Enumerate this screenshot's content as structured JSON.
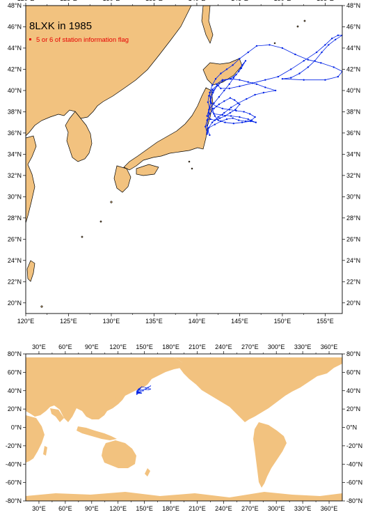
{
  "colors": {
    "land": "#f2c27f",
    "sea": "#ffffff",
    "track": "#0022e6",
    "legend_text": "#e60000",
    "legend_marker": "#e60000",
    "frame": "#000000"
  },
  "top_map": {
    "title": "8LXK in 1985",
    "legend_label": "5 or 6 of station information flag",
    "lon_range": [
      120,
      157
    ],
    "lat_range": [
      19,
      48
    ],
    "lon_ticks": [
      "120°E",
      "125°E",
      "130°E",
      "135°E",
      "140°E",
      "145°E",
      "150°E",
      "155°E"
    ],
    "lat_ticks": [
      "20°N",
      "22°N",
      "24°N",
      "26°N",
      "28°N",
      "30°N",
      "32°N",
      "34°N",
      "36°N",
      "38°N",
      "40°N",
      "42°N",
      "44°N",
      "46°N",
      "48°N"
    ],
    "track_lonlat": [
      [
        141.2,
        36.0
      ],
      [
        141.0,
        36.6
      ],
      [
        141.2,
        37.2
      ],
      [
        141.5,
        37.8
      ],
      [
        142.0,
        38.3
      ],
      [
        142.6,
        38.7
      ],
      [
        143.2,
        39.0
      ],
      [
        143.9,
        39.3
      ],
      [
        144.4,
        39.1
      ],
      [
        145.0,
        38.7
      ],
      [
        144.5,
        38.2
      ],
      [
        143.9,
        37.9
      ],
      [
        143.3,
        37.6
      ],
      [
        142.7,
        37.4
      ],
      [
        142.1,
        37.2
      ],
      [
        141.6,
        37.3
      ],
      [
        141.2,
        37.6
      ],
      [
        141.4,
        38.2
      ],
      [
        142.0,
        38.8
      ],
      [
        142.6,
        39.4
      ],
      [
        143.2,
        40.0
      ],
      [
        143.8,
        40.6
      ],
      [
        144.3,
        41.2
      ],
      [
        144.9,
        41.8
      ],
      [
        145.3,
        42.4
      ],
      [
        145.7,
        42.8
      ],
      [
        145.2,
        42.1
      ],
      [
        144.6,
        41.5
      ],
      [
        143.9,
        41.1
      ],
      [
        143.0,
        40.9
      ],
      [
        142.5,
        40.5
      ],
      [
        141.9,
        40.0
      ],
      [
        141.6,
        39.4
      ],
      [
        141.7,
        38.8
      ],
      [
        142.3,
        38.5
      ],
      [
        143.0,
        38.3
      ],
      [
        143.8,
        38.2
      ],
      [
        144.6,
        38.1
      ],
      [
        145.5,
        38.0
      ],
      [
        146.2,
        37.8
      ],
      [
        146.8,
        37.5
      ],
      [
        146.4,
        37.2
      ],
      [
        145.7,
        37.1
      ],
      [
        144.9,
        37.2
      ],
      [
        144.2,
        37.4
      ],
      [
        143.5,
        37.3
      ],
      [
        142.8,
        37.1
      ],
      [
        142.1,
        36.8
      ],
      [
        141.4,
        36.5
      ],
      [
        141.2,
        35.9
      ],
      [
        141.3,
        36.4
      ],
      [
        141.8,
        37.0
      ],
      [
        142.5,
        37.5
      ],
      [
        143.2,
        37.9
      ],
      [
        144.0,
        38.4
      ],
      [
        144.8,
        38.8
      ],
      [
        145.8,
        39.2
      ],
      [
        146.8,
        39.6
      ],
      [
        147.8,
        39.8
      ],
      [
        149.2,
        40.0
      ],
      [
        148.0,
        40.3
      ],
      [
        147.0,
        40.6
      ],
      [
        146.0,
        40.8
      ],
      [
        145.0,
        41.0
      ],
      [
        144.0,
        41.1
      ],
      [
        143.0,
        41.0
      ],
      [
        142.3,
        40.6
      ],
      [
        142.8,
        40.2
      ],
      [
        143.8,
        40.2
      ],
      [
        145.0,
        40.4
      ],
      [
        146.5,
        40.7
      ],
      [
        148.0,
        41.0
      ],
      [
        149.5,
        41.3
      ],
      [
        151.0,
        42.0
      ],
      [
        152.5,
        42.8
      ],
      [
        154.0,
        43.6
      ],
      [
        155.0,
        44.3
      ],
      [
        155.8,
        44.9
      ],
      [
        156.5,
        45.2
      ],
      [
        157.0,
        45.2
      ],
      [
        156.2,
        44.8
      ],
      [
        155.4,
        44.3
      ],
      [
        154.6,
        43.6
      ],
      [
        153.8,
        42.8
      ],
      [
        153.0,
        42.2
      ],
      [
        152.0,
        41.6
      ],
      [
        151.0,
        41.2
      ],
      [
        150.0,
        41.1
      ],
      [
        152.5,
        41.0
      ],
      [
        155.0,
        41.0
      ],
      [
        156.5,
        41.3
      ],
      [
        157.0,
        41.8
      ],
      [
        156.0,
        42.2
      ],
      [
        154.5,
        42.6
      ],
      [
        153.0,
        42.9
      ],
      [
        151.5,
        43.4
      ],
      [
        150.0,
        44.0
      ],
      [
        148.5,
        44.3
      ],
      [
        147.0,
        44.2
      ],
      [
        146.0,
        43.6
      ],
      [
        145.0,
        43.0
      ],
      [
        144.2,
        42.4
      ],
      [
        143.5,
        42.0
      ],
      [
        142.8,
        41.6
      ],
      [
        142.2,
        41.1
      ],
      [
        141.8,
        40.5
      ],
      [
        141.5,
        39.8
      ],
      [
        141.6,
        39.0
      ],
      [
        141.8,
        38.3
      ],
      [
        142.1,
        37.6
      ],
      [
        142.5,
        37.2
      ],
      [
        143.3,
        37.0
      ],
      [
        144.3,
        36.9
      ],
      [
        145.3,
        37.0
      ],
      [
        146.3,
        37.1
      ],
      [
        146.9,
        37.0
      ],
      [
        146.0,
        37.3
      ],
      [
        145.0,
        37.5
      ],
      [
        144.0,
        37.6
      ],
      [
        143.0,
        37.7
      ],
      [
        142.0,
        37.8
      ],
      [
        141.5,
        38.3
      ],
      [
        141.3,
        38.9
      ],
      [
        141.4,
        39.5
      ],
      [
        141.8,
        40.1
      ],
      [
        142.4,
        40.5
      ],
      [
        141.9,
        39.8
      ],
      [
        141.6,
        39.0
      ],
      [
        141.5,
        38.4
      ],
      [
        141.4,
        37.9
      ],
      [
        141.3,
        37.3
      ],
      [
        141.2,
        36.7
      ],
      [
        141.3,
        36.2
      ],
      [
        141.5,
        35.8
      ]
    ]
  },
  "bottom_map": {
    "lon_range": [
      15,
      375
    ],
    "lat_range": [
      -80,
      80
    ],
    "lon_ticks": [
      "30°E",
      "60°E",
      "90°E",
      "120°E",
      "150°E",
      "180°E",
      "210°E",
      "240°E",
      "270°E",
      "300°E",
      "330°E",
      "360°E"
    ],
    "lat_ticks": [
      "-80°N",
      "-60°N",
      "-40°N",
      "-20°N",
      "0°N",
      "20°N",
      "40°N",
      "60°N",
      "80°N"
    ],
    "track_lonlat": [
      [
        141.2,
        36.0
      ],
      [
        141.5,
        37.8
      ],
      [
        143.2,
        39.0
      ],
      [
        145.0,
        38.7
      ],
      [
        142.1,
        37.2
      ],
      [
        141.4,
        38.2
      ],
      [
        143.8,
        40.6
      ],
      [
        145.7,
        42.8
      ],
      [
        143.0,
        40.9
      ],
      [
        141.6,
        39.4
      ],
      [
        143.8,
        38.2
      ],
      [
        146.8,
        37.5
      ],
      [
        144.2,
        37.4
      ],
      [
        141.4,
        36.5
      ],
      [
        142.5,
        37.5
      ],
      [
        145.8,
        39.2
      ],
      [
        149.2,
        40.0
      ],
      [
        146.0,
        40.8
      ],
      [
        142.3,
        40.6
      ],
      [
        145.0,
        40.4
      ],
      [
        149.5,
        41.3
      ],
      [
        154.0,
        43.6
      ],
      [
        157.0,
        45.2
      ],
      [
        154.6,
        43.6
      ],
      [
        151.0,
        41.2
      ],
      [
        155.0,
        41.0
      ],
      [
        157.0,
        41.8
      ],
      [
        151.5,
        43.4
      ],
      [
        147.0,
        44.2
      ],
      [
        143.5,
        42.0
      ],
      [
        141.5,
        39.8
      ],
      [
        142.5,
        37.2
      ],
      [
        146.3,
        37.1
      ],
      [
        143.0,
        37.7
      ],
      [
        141.3,
        38.9
      ],
      [
        141.3,
        37.3
      ],
      [
        141.5,
        35.8
      ]
    ]
  }
}
